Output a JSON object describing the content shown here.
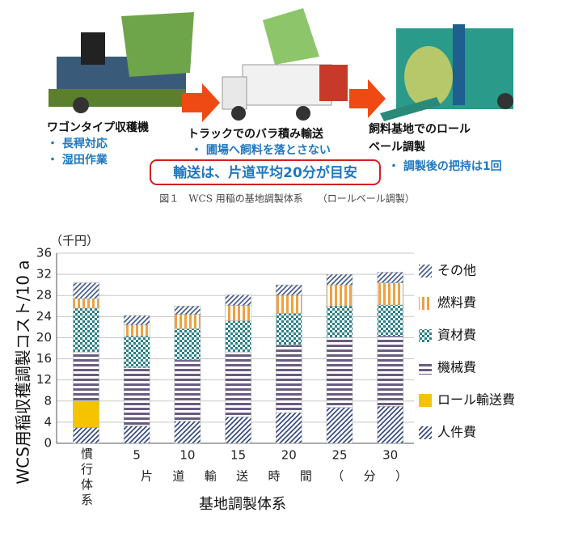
{
  "figure": {
    "panels": [
      {
        "title": [
          "ワゴンタイプ収穫機"
        ],
        "bullets": [
          "・ 長稈対応",
          "・ 湿田作業"
        ]
      },
      {
        "title": [
          "トラックでのバラ積み輸送"
        ],
        "bullets": [
          "・ 圃場へ飼料を落とさない"
        ]
      },
      {
        "title": [
          "飼料基地でのロール",
          "ベール調製"
        ],
        "bullets": [
          "・ 調製後の把持は1回"
        ]
      }
    ],
    "note": "輸送は、片道平均20分が目安",
    "caption": "図１　WCS 用稲の基地調製体系　　（ロールベール調製）"
  },
  "chart_data": {
    "type": "stacked_bar",
    "y_label": "WCS用稲収穫調製コスト/10 a",
    "y_unit": "（千円）",
    "x_label": "基地調製体系",
    "x_sublabel": "片道輸送時間（分）",
    "categories": [
      "慣行体系",
      "5",
      "10",
      "15",
      "20",
      "25",
      "30"
    ],
    "series": [
      {
        "name": "人件費",
        "color": "#2a3f78",
        "pattern": "diagonal",
        "values": [
          3.0,
          3.3,
          4.2,
          5.0,
          5.8,
          6.8,
          7.0
        ]
      },
      {
        "name": "ロール輸送費",
        "color": "#f5c400",
        "pattern": "solid",
        "values": [
          5.0,
          0,
          0,
          0,
          0,
          0,
          0
        ]
      },
      {
        "name": "機械費",
        "color": "#6a5c80",
        "pattern": "horizontal",
        "values": [
          9.3,
          11.0,
          11.6,
          12.3,
          12.8,
          13.2,
          13.3
        ]
      },
      {
        "name": "資材費",
        "color": "#2a7f86",
        "pattern": "checker",
        "values": [
          8.3,
          6.0,
          5.9,
          5.9,
          6.0,
          6.0,
          5.9
        ]
      },
      {
        "name": "燃料費",
        "color": "#f0a040",
        "pattern": "vertical",
        "values": [
          1.8,
          2.1,
          2.7,
          2.9,
          3.4,
          4.0,
          4.2
        ]
      },
      {
        "name": "その他",
        "color": "#3f5486",
        "pattern": "diagonal",
        "values": [
          3.0,
          1.8,
          1.6,
          2.0,
          2.0,
          2.0,
          2.0
        ]
      }
    ],
    "ylim": [
      0,
      36
    ],
    "yticks": [
      0,
      4,
      8,
      12,
      16,
      20,
      24,
      28,
      32,
      36
    ],
    "grid": true,
    "legend": "right"
  }
}
